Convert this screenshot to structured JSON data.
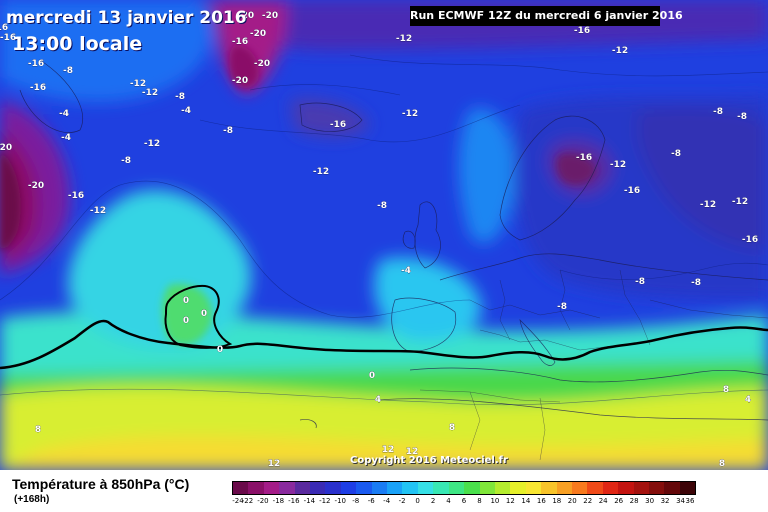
{
  "header": {
    "date": "mercredi 13 janvier 2016",
    "time": "13:00 locale",
    "run_info": "Run ECMWF 12Z du mercredi 6 janvier 2016"
  },
  "copyright": "Copyright 2016 Meteociel.fr",
  "footer": {
    "title": "Température à 850hPa (°C)",
    "subtitle": "(+168h)"
  },
  "legend": {
    "labels": [
      "-24",
      "-22",
      "-20",
      "-18",
      "-16",
      "-14",
      "-12",
      "-10",
      "-8",
      "-6",
      "-4",
      "-2",
      "0",
      "2",
      "4",
      "6",
      "8",
      "10",
      "12",
      "14",
      "16",
      "18",
      "20",
      "22",
      "24",
      "26",
      "28",
      "30",
      "32",
      "34",
      "36"
    ],
    "colors": [
      "#6a0a4a",
      "#8a1068",
      "#a41c88",
      "#8a2a9e",
      "#5a2a9e",
      "#3a2ab4",
      "#2a30cc",
      "#1e3ee6",
      "#1a5af0",
      "#1a7cf4",
      "#1aa2f8",
      "#22c4f4",
      "#36e0e6",
      "#38e8b4",
      "#3ee684",
      "#4ae04c",
      "#80e63a",
      "#b4ec2e",
      "#e6f02a",
      "#f8e632",
      "#f8c42a",
      "#f8a024",
      "#f87a1e",
      "#f04a18",
      "#e02614",
      "#c41410",
      "#a4120e",
      "#840e0c",
      "#64080a",
      "#3c0408"
    ]
  },
  "map_labels": [
    {
      "text": "-20"
    },
    {
      "text": "-20"
    },
    {
      "text": "-20"
    },
    {
      "text": "-16"
    },
    {
      "text": "-20"
    },
    {
      "text": "-20"
    },
    {
      "text": "-16"
    },
    {
      "text": "-16"
    },
    {
      "text": "-16"
    },
    {
      "text": "-16"
    },
    {
      "text": "-8"
    },
    {
      "text": "-4"
    },
    {
      "text": "-8"
    },
    {
      "text": "-4"
    },
    {
      "text": "-12"
    },
    {
      "text": "-12"
    },
    {
      "text": "-8"
    },
    {
      "text": "-4"
    },
    {
      "text": "-12"
    },
    {
      "text": "-8"
    },
    {
      "text": "-16"
    },
    {
      "text": "-12"
    },
    {
      "text": "-12"
    },
    {
      "text": "-20"
    },
    {
      "text": "-20"
    },
    {
      "text": "-16"
    },
    {
      "text": "-12"
    },
    {
      "text": "-12"
    },
    {
      "text": "-16"
    },
    {
      "text": "-12"
    },
    {
      "text": "-8"
    },
    {
      "text": "-8"
    },
    {
      "text": "-8"
    },
    {
      "text": "-16"
    },
    {
      "text": "-12"
    },
    {
      "text": "-16"
    },
    {
      "text": "-12"
    },
    {
      "text": "-12"
    },
    {
      "text": "-16"
    },
    {
      "text": "-8"
    },
    {
      "text": "-8"
    },
    {
      "text": "-8"
    },
    {
      "text": "-8"
    },
    {
      "text": "-4"
    },
    {
      "text": "0"
    },
    {
      "text": "0"
    },
    {
      "text": "0"
    },
    {
      "text": "0"
    },
    {
      "text": "0"
    },
    {
      "text": "4"
    },
    {
      "text": "4"
    },
    {
      "text": "8"
    },
    {
      "text": "8"
    },
    {
      "text": "12"
    },
    {
      "text": "12"
    },
    {
      "text": "12"
    },
    {
      "text": "8"
    },
    {
      "text": "8"
    }
  ]
}
